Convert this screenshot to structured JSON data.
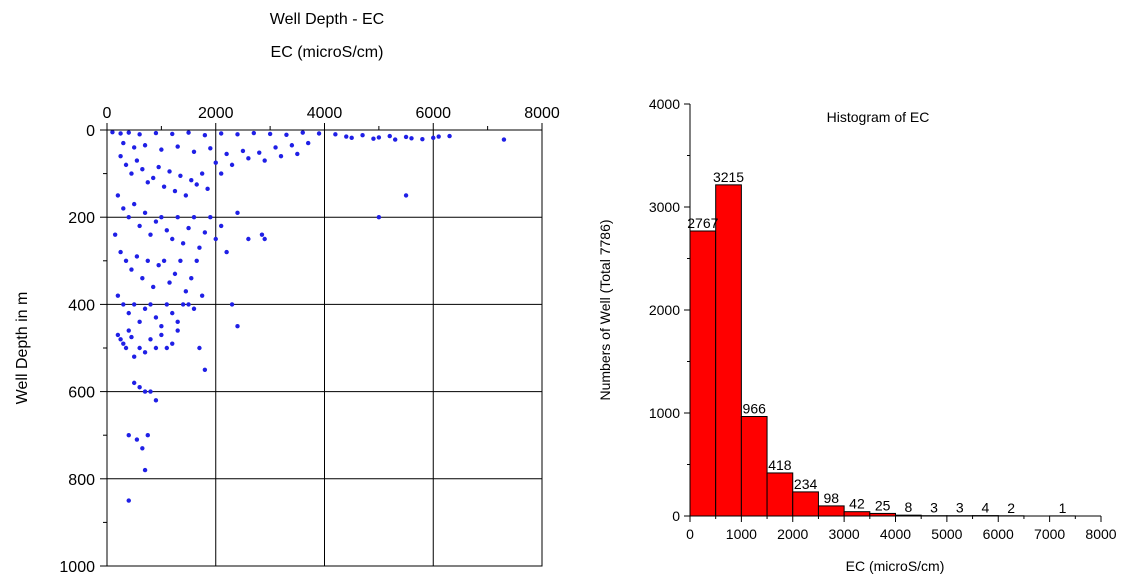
{
  "chart_data": [
    {
      "type": "scatter",
      "title": "Well Depth - EC",
      "xlabel": "EC (microS/cm)",
      "ylabel": "Well Depth in m",
      "xlim": [
        0,
        8000
      ],
      "ylim": [
        0,
        1000
      ],
      "x_axis_position": "top",
      "y_inverted": true,
      "grid": true,
      "x_ticks": [
        "0",
        "2000",
        "4000",
        "6000",
        "8000"
      ],
      "y_ticks": [
        "0",
        "200",
        "400",
        "600",
        "800",
        "1000"
      ],
      "point_color": "#1f1fe6",
      "series": [
        {
          "points": [
            [
              100,
              5
            ],
            [
              250,
              8
            ],
            [
              400,
              6
            ],
            [
              600,
              10
            ],
            [
              900,
              7
            ],
            [
              1200,
              9
            ],
            [
              1500,
              6
            ],
            [
              1800,
              12
            ],
            [
              2100,
              8
            ],
            [
              2400,
              10
            ],
            [
              2700,
              7
            ],
            [
              3000,
              9
            ],
            [
              3300,
              11
            ],
            [
              3600,
              6
            ],
            [
              3900,
              8
            ],
            [
              4200,
              10
            ],
            [
              4400,
              15
            ],
            [
              4500,
              18
            ],
            [
              4700,
              12
            ],
            [
              4900,
              20
            ],
            [
              5000,
              17
            ],
            [
              5200,
              14
            ],
            [
              5300,
              22
            ],
            [
              5500,
              16
            ],
            [
              5600,
              19
            ],
            [
              5800,
              21
            ],
            [
              6000,
              18
            ],
            [
              6100,
              15
            ],
            [
              6300,
              14
            ],
            [
              7300,
              22
            ],
            [
              300,
              30
            ],
            [
              500,
              40
            ],
            [
              700,
              35
            ],
            [
              1000,
              45
            ],
            [
              1300,
              38
            ],
            [
              1600,
              50
            ],
            [
              1900,
              42
            ],
            [
              2200,
              55
            ],
            [
              2500,
              48
            ],
            [
              2800,
              52
            ],
            [
              3100,
              40
            ],
            [
              3400,
              35
            ],
            [
              3700,
              30
            ],
            [
              250,
              60
            ],
            [
              350,
              80
            ],
            [
              450,
              100
            ],
            [
              550,
              70
            ],
            [
              650,
              90
            ],
            [
              750,
              120
            ],
            [
              850,
              110
            ],
            [
              950,
              85
            ],
            [
              1050,
              130
            ],
            [
              1150,
              95
            ],
            [
              1250,
              140
            ],
            [
              1350,
              105
            ],
            [
              1450,
              150
            ],
            [
              1550,
              115
            ],
            [
              1650,
              125
            ],
            [
              1750,
              100
            ],
            [
              1850,
              135
            ],
            [
              2000,
              75
            ],
            [
              2100,
              100
            ],
            [
              2300,
              80
            ],
            [
              2600,
              65
            ],
            [
              2900,
              70
            ],
            [
              3200,
              60
            ],
            [
              3500,
              55
            ],
            [
              200,
              150
            ],
            [
              300,
              180
            ],
            [
              400,
              200
            ],
            [
              500,
              170
            ],
            [
              600,
              220
            ],
            [
              700,
              190
            ],
            [
              800,
              240
            ],
            [
              900,
              210
            ],
            [
              1000,
              200
            ],
            [
              1100,
              230
            ],
            [
              1200,
              250
            ],
            [
              1300,
              200
            ],
            [
              1400,
              260
            ],
            [
              1500,
              225
            ],
            [
              1600,
              200
            ],
            [
              1700,
              270
            ],
            [
              1800,
              235
            ],
            [
              1900,
              200
            ],
            [
              2000,
              250
            ],
            [
              2100,
              220
            ],
            [
              2200,
              280
            ],
            [
              2400,
              190
            ],
            [
              2600,
              250
            ],
            [
              5500,
              150
            ],
            [
              5000,
              200
            ],
            [
              2900,
              250
            ],
            [
              2850,
              240
            ],
            [
              150,
              240
            ],
            [
              250,
              280
            ],
            [
              350,
              300
            ],
            [
              450,
              320
            ],
            [
              550,
              290
            ],
            [
              650,
              340
            ],
            [
              750,
              300
            ],
            [
              850,
              360
            ],
            [
              950,
              310
            ],
            [
              1050,
              300
            ],
            [
              1150,
              350
            ],
            [
              1250,
              330
            ],
            [
              1350,
              300
            ],
            [
              1450,
              370
            ],
            [
              1550,
              340
            ],
            [
              1650,
              300
            ],
            [
              1750,
              380
            ],
            [
              200,
              380
            ],
            [
              300,
              400
            ],
            [
              400,
              420
            ],
            [
              500,
              400
            ],
            [
              600,
              440
            ],
            [
              700,
              410
            ],
            [
              800,
              400
            ],
            [
              900,
              430
            ],
            [
              1000,
              450
            ],
            [
              1100,
              400
            ],
            [
              1200,
              420
            ],
            [
              1300,
              440
            ],
            [
              1400,
              400
            ],
            [
              1500,
              400
            ],
            [
              1600,
              410
            ],
            [
              2300,
              400
            ],
            [
              2400,
              450
            ],
            [
              200,
              470
            ],
            [
              250,
              480
            ],
            [
              300,
              490
            ],
            [
              350,
              500
            ],
            [
              400,
              460
            ],
            [
              450,
              475
            ],
            [
              500,
              520
            ],
            [
              600,
              500
            ],
            [
              700,
              510
            ],
            [
              800,
              480
            ],
            [
              900,
              500
            ],
            [
              1000,
              470
            ],
            [
              1100,
              500
            ],
            [
              1200,
              490
            ],
            [
              1300,
              460
            ],
            [
              1700,
              500
            ],
            [
              1800,
              550
            ],
            [
              500,
              580
            ],
            [
              600,
              590
            ],
            [
              700,
              600
            ],
            [
              900,
              620
            ],
            [
              800,
              600
            ],
            [
              400,
              700
            ],
            [
              550,
              710
            ],
            [
              650,
              730
            ],
            [
              750,
              700
            ],
            [
              700,
              780
            ],
            [
              400,
              850
            ]
          ]
        }
      ]
    },
    {
      "type": "bar",
      "title": "Histogram of EC",
      "xlabel": "EC (microS/cm)",
      "ylabel": "Numbers of Well (Total 7786)",
      "xlim": [
        0,
        8000
      ],
      "ylim": [
        0,
        4000
      ],
      "x_ticks": [
        "0",
        "1000",
        "2000",
        "3000",
        "4000",
        "5000",
        "6000",
        "7000",
        "8000"
      ],
      "y_ticks": [
        "0",
        "1000",
        "2000",
        "3000",
        "4000"
      ],
      "bar_color": "#ff0000",
      "bin_width": 500,
      "bin_starts": [
        0,
        500,
        1000,
        1500,
        2000,
        2500,
        3000,
        3500,
        4000,
        4500,
        5000,
        5500,
        6000,
        6500,
        7000
      ],
      "values": [
        2767,
        3215,
        966,
        418,
        234,
        98,
        42,
        25,
        8,
        3,
        3,
        4,
        2,
        0,
        1
      ],
      "labels": [
        "2767",
        "3215",
        "966",
        "418",
        "234",
        "98",
        "42",
        "25",
        "8",
        "3",
        "3",
        "4",
        "2",
        "",
        "1"
      ]
    }
  ]
}
